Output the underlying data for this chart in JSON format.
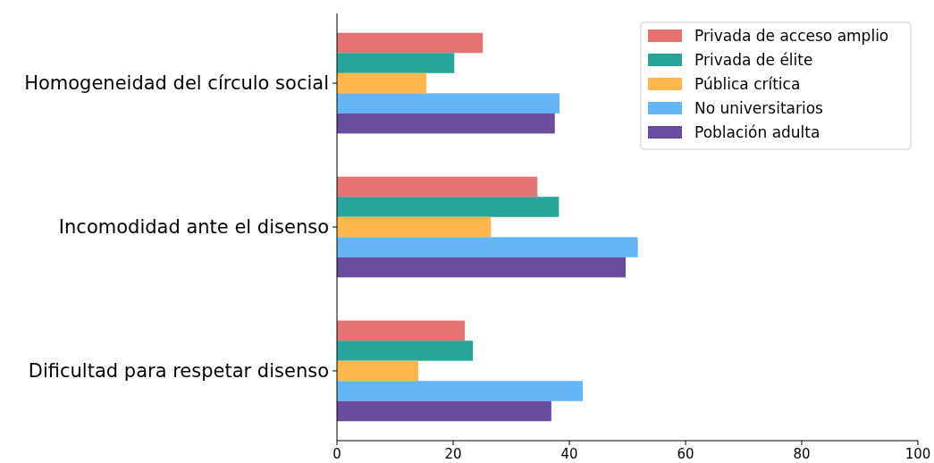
{
  "chart_data": {
    "type": "bar",
    "orientation": "horizontal",
    "categories": [
      "Homogeneidad del círculo social",
      "Incomodidad ante el disenso",
      "Dificultad para respetar disenso"
    ],
    "series": [
      {
        "name": "Privada de acceso amplio",
        "color": "#e57373",
        "values": [
          25.1,
          34.5,
          22.0
        ]
      },
      {
        "name": "Privada de élite",
        "color": "#26a69a",
        "values": [
          20.2,
          38.2,
          23.4
        ]
      },
      {
        "name": "Pública crítica",
        "color": "#ffb74d",
        "values": [
          15.4,
          26.5,
          14.0
        ]
      },
      {
        "name": "No universitarios",
        "color": "#64b5f6",
        "values": [
          38.3,
          51.8,
          42.3
        ]
      },
      {
        "name": "Población adulta",
        "color": "#6a4c9c",
        "values": [
          37.5,
          49.7,
          36.9
        ]
      }
    ],
    "xlim": [
      0,
      100
    ],
    "xticks": [
      0,
      20,
      40,
      60,
      80,
      100
    ],
    "grid": false,
    "legend": "top right"
  }
}
